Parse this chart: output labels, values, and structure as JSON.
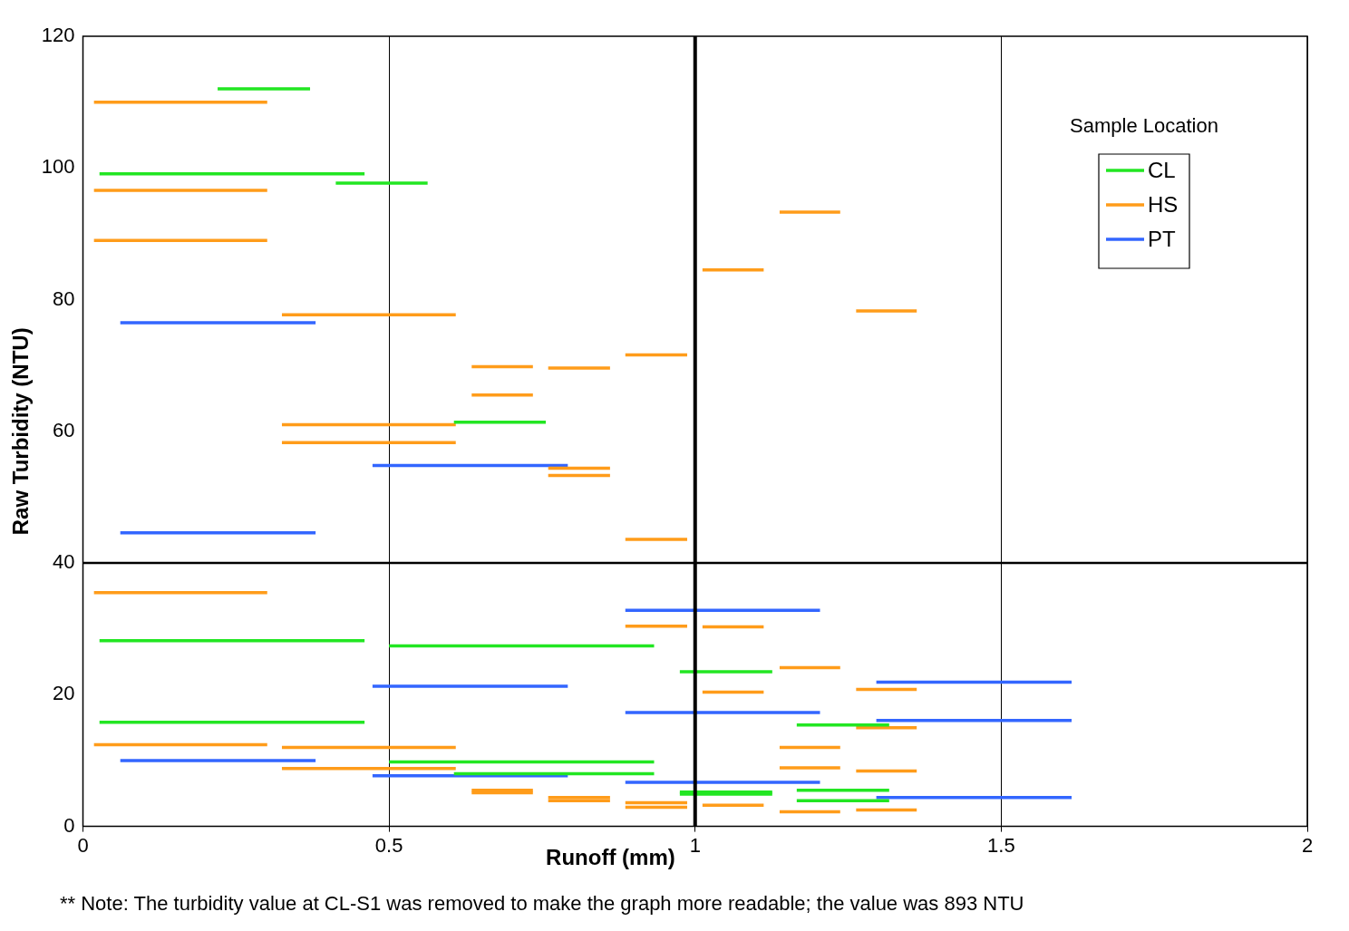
{
  "chart_data": {
    "type": "line",
    "xlabel": "Runoff (mm)",
    "ylabel": "Raw Turbidity (NTU)",
    "legend_title": "Sample Location",
    "legend": "top right",
    "grid": "x",
    "xlim": [
      0,
      2
    ],
    "xticks": [
      0,
      0.5,
      1,
      1.5,
      2
    ],
    "ylim": [
      0,
      120
    ],
    "yticks": [
      0,
      20,
      40,
      60,
      80,
      100,
      120
    ],
    "ref_lines": [
      {
        "axis": "x",
        "value": 1,
        "color": "#000000"
      },
      {
        "axis": "y",
        "value": 40,
        "color": "#000000"
      }
    ],
    "annotations": [
      "** Note: The turbidity value at CL-S1 was removed to make the graph more readable; the value was 893 NTU"
    ],
    "series": [
      {
        "name": "CL",
        "color": "#22e622",
        "x": [
          0.22,
          0.371
        ],
        "values": [
          112,
          112
        ]
      },
      {
        "color": "#22e622",
        "x": [
          0.027,
          0.46
        ],
        "values": [
          99.1,
          99.1
        ]
      },
      {
        "color": "#22e622",
        "x": [
          0.413,
          0.563
        ],
        "values": [
          97.7,
          97.7
        ]
      },
      {
        "color": "#22e622",
        "x": [
          0.606,
          0.756
        ],
        "values": [
          61.4,
          61.4
        ]
      },
      {
        "color": "#22e622",
        "x": [
          0.027,
          0.46
        ],
        "values": [
          28.2,
          28.2
        ]
      },
      {
        "color": "#22e622",
        "x": [
          0.5,
          0.933
        ],
        "values": [
          27.4,
          27.4
        ]
      },
      {
        "color": "#22e622",
        "x": [
          0.027,
          0.46
        ],
        "values": [
          15.8,
          15.8
        ]
      },
      {
        "color": "#22e622",
        "x": [
          0.975,
          1.126
        ],
        "values": [
          23.5,
          23.5
        ]
      },
      {
        "color": "#22e622",
        "x": [
          1.166,
          1.317
        ],
        "values": [
          15.4,
          15.4
        ]
      },
      {
        "color": "#22e622",
        "x": [
          0.5,
          0.933
        ],
        "values": [
          9.8,
          9.8
        ]
      },
      {
        "color": "#22e622",
        "x": [
          0.606,
          0.933
        ],
        "values": [
          8,
          8
        ]
      },
      {
        "color": "#22e622",
        "x": [
          0.975,
          1.126
        ],
        "values": [
          5.2,
          5.2
        ]
      },
      {
        "color": "#22e622",
        "x": [
          0.975,
          1.126
        ],
        "values": [
          4.9,
          4.9
        ]
      },
      {
        "color": "#22e622",
        "x": [
          1.166,
          1.317
        ],
        "values": [
          5.5,
          5.5
        ]
      },
      {
        "color": "#22e622",
        "x": [
          1.166,
          1.317
        ],
        "values": [
          3.9,
          3.9
        ]
      },
      {
        "name": "HS",
        "color": "#ff9c1a",
        "x": [
          0.018,
          0.301
        ],
        "values": [
          110,
          110
        ]
      },
      {
        "color": "#ff9c1a",
        "x": [
          0.018,
          0.301
        ],
        "values": [
          96.6,
          96.6
        ]
      },
      {
        "color": "#ff9c1a",
        "x": [
          0.018,
          0.301
        ],
        "values": [
          89,
          89
        ]
      },
      {
        "color": "#ff9c1a",
        "x": [
          0.325,
          0.609
        ],
        "values": [
          77.7,
          77.7
        ]
      },
      {
        "color": "#ff9c1a",
        "x": [
          0.635,
          0.735
        ],
        "values": [
          69.8,
          69.8
        ]
      },
      {
        "color": "#ff9c1a",
        "x": [
          0.76,
          0.861
        ],
        "values": [
          69.6,
          69.6
        ]
      },
      {
        "color": "#ff9c1a",
        "x": [
          0.886,
          0.987
        ],
        "values": [
          71.6,
          71.6
        ]
      },
      {
        "color": "#ff9c1a",
        "x": [
          0.635,
          0.735
        ],
        "values": [
          65.5,
          65.5
        ]
      },
      {
        "color": "#ff9c1a",
        "x": [
          0.325,
          0.609
        ],
        "values": [
          61,
          61
        ]
      },
      {
        "color": "#ff9c1a",
        "x": [
          0.325,
          0.609
        ],
        "values": [
          58.3,
          58.3
        ]
      },
      {
        "color": "#ff9c1a",
        "x": [
          0.76,
          0.861
        ],
        "values": [
          54.4,
          54.4
        ]
      },
      {
        "color": "#ff9c1a",
        "x": [
          0.76,
          0.861
        ],
        "values": [
          53.3,
          53.3
        ]
      },
      {
        "color": "#ff9c1a",
        "x": [
          0.886,
          0.987
        ],
        "values": [
          43.6,
          43.6
        ]
      },
      {
        "color": "#ff9c1a",
        "x": [
          1.012,
          1.112
        ],
        "values": [
          84.5,
          84.5
        ]
      },
      {
        "color": "#ff9c1a",
        "x": [
          1.138,
          1.237
        ],
        "values": [
          93.3,
          93.3
        ]
      },
      {
        "color": "#ff9c1a",
        "x": [
          1.263,
          1.362
        ],
        "values": [
          78.3,
          78.3
        ]
      },
      {
        "color": "#ff9c1a",
        "x": [
          0.018,
          0.301
        ],
        "values": [
          35.5,
          35.5
        ]
      },
      {
        "color": "#ff9c1a",
        "x": [
          0.886,
          0.987
        ],
        "values": [
          30.4,
          30.4
        ]
      },
      {
        "color": "#ff9c1a",
        "x": [
          1.012,
          1.112
        ],
        "values": [
          30.3,
          30.3
        ]
      },
      {
        "color": "#ff9c1a",
        "x": [
          1.138,
          1.237
        ],
        "values": [
          24.1,
          24.1
        ]
      },
      {
        "color": "#ff9c1a",
        "x": [
          1.012,
          1.112
        ],
        "values": [
          20.4,
          20.4
        ]
      },
      {
        "color": "#ff9c1a",
        "x": [
          1.263,
          1.362
        ],
        "values": [
          20.8,
          20.8
        ]
      },
      {
        "color": "#ff9c1a",
        "x": [
          1.263,
          1.362
        ],
        "values": [
          15,
          15
        ]
      },
      {
        "color": "#ff9c1a",
        "x": [
          0.018,
          0.301
        ],
        "values": [
          12.4,
          12.4
        ]
      },
      {
        "color": "#ff9c1a",
        "x": [
          0.325,
          0.609
        ],
        "values": [
          12,
          12
        ]
      },
      {
        "color": "#ff9c1a",
        "x": [
          1.138,
          1.237
        ],
        "values": [
          12,
          12
        ]
      },
      {
        "color": "#ff9c1a",
        "x": [
          0.325,
          0.609
        ],
        "values": [
          8.8,
          8.8
        ]
      },
      {
        "color": "#ff9c1a",
        "x": [
          1.138,
          1.237
        ],
        "values": [
          8.9,
          8.9
        ]
      },
      {
        "color": "#ff9c1a",
        "x": [
          1.263,
          1.362
        ],
        "values": [
          8.4,
          8.4
        ]
      },
      {
        "color": "#ff9c1a",
        "x": [
          0.635,
          0.735
        ],
        "values": [
          5.5,
          5.5
        ]
      },
      {
        "color": "#ff9c1a",
        "x": [
          0.635,
          0.735
        ],
        "values": [
          5.1,
          5.1
        ]
      },
      {
        "color": "#ff9c1a",
        "x": [
          0.76,
          0.861
        ],
        "values": [
          4.4,
          4.4
        ]
      },
      {
        "color": "#ff9c1a",
        "x": [
          0.76,
          0.861
        ],
        "values": [
          3.9,
          3.9
        ]
      },
      {
        "color": "#ff9c1a",
        "x": [
          0.886,
          0.987
        ],
        "values": [
          3.6,
          3.6
        ]
      },
      {
        "color": "#ff9c1a",
        "x": [
          0.886,
          0.987
        ],
        "values": [
          2.9,
          2.9
        ]
      },
      {
        "color": "#ff9c1a",
        "x": [
          1.012,
          1.112
        ],
        "values": [
          3.2,
          3.2
        ]
      },
      {
        "color": "#ff9c1a",
        "x": [
          1.138,
          1.237
        ],
        "values": [
          2.2,
          2.2
        ]
      },
      {
        "color": "#ff9c1a",
        "x": [
          1.263,
          1.362
        ],
        "values": [
          2.5,
          2.5
        ]
      },
      {
        "name": "PT",
        "color": "#3366ff",
        "x": [
          0.061,
          0.38
        ],
        "values": [
          76.5,
          76.5
        ]
      },
      {
        "color": "#3366ff",
        "x": [
          0.473,
          0.792
        ],
        "values": [
          54.8,
          54.8
        ]
      },
      {
        "color": "#3366ff",
        "x": [
          0.061,
          0.38
        ],
        "values": [
          44.6,
          44.6
        ]
      },
      {
        "color": "#3366ff",
        "x": [
          0.886,
          1.204
        ],
        "values": [
          32.8,
          32.8
        ]
      },
      {
        "color": "#3366ff",
        "x": [
          0.473,
          0.792
        ],
        "values": [
          21.3,
          21.3
        ]
      },
      {
        "color": "#3366ff",
        "x": [
          1.296,
          1.615
        ],
        "values": [
          21.9,
          21.9
        ]
      },
      {
        "color": "#3366ff",
        "x": [
          0.886,
          1.204
        ],
        "values": [
          17.3,
          17.3
        ]
      },
      {
        "color": "#3366ff",
        "x": [
          1.296,
          1.615
        ],
        "values": [
          16.1,
          16.1
        ]
      },
      {
        "color": "#3366ff",
        "x": [
          0.061,
          0.38
        ],
        "values": [
          10,
          10
        ]
      },
      {
        "color": "#3366ff",
        "x": [
          0.473,
          0.792
        ],
        "values": [
          7.7,
          7.7
        ]
      },
      {
        "color": "#3366ff",
        "x": [
          0.886,
          1.204
        ],
        "values": [
          6.7,
          6.7
        ]
      },
      {
        "color": "#3366ff",
        "x": [
          1.296,
          1.615
        ],
        "values": [
          4.4,
          4.4
        ]
      }
    ]
  }
}
